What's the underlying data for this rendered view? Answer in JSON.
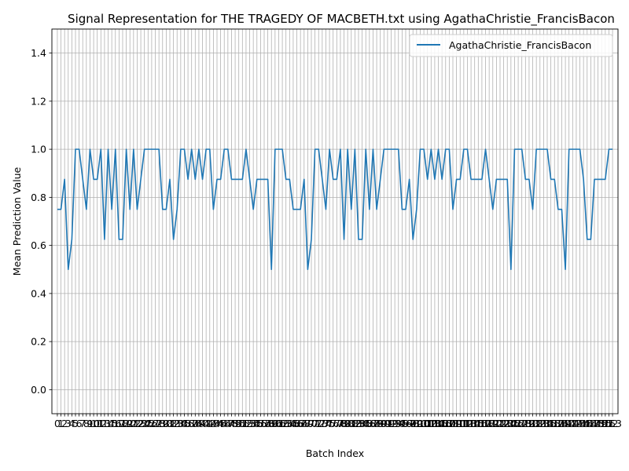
{
  "chart_data": {
    "type": "line",
    "title": "Signal Representation for THE TRAGEDY OF MACBETH.txt using AgathaChristie_FrancisBacon",
    "xlabel": "Batch Index",
    "ylabel": "Mean Prediction Value",
    "xlim": [
      -1.5,
      154.5
    ],
    "ylim": [
      -0.1,
      1.5
    ],
    "yticks": [
      0.0,
      0.2,
      0.4,
      0.6,
      0.8,
      1.0,
      1.2,
      1.4
    ],
    "xticks_count": 154,
    "grid": true,
    "legend_position": "upper right",
    "series": [
      {
        "name": "AgathaChristie_FrancisBacon",
        "color": "#1f77b4",
        "values": [
          0.75,
          0.75,
          0.875,
          0.5,
          0.625,
          1.0,
          1.0,
          0.875,
          0.75,
          1.0,
          0.875,
          0.875,
          1.0,
          0.625,
          1.0,
          0.75,
          1.0,
          0.625,
          0.625,
          1.0,
          0.75,
          1.0,
          0.75,
          0.875,
          1.0,
          1.0,
          1.0,
          1.0,
          1.0,
          0.75,
          0.75,
          0.875,
          0.625,
          0.75,
          1.0,
          1.0,
          0.875,
          1.0,
          0.875,
          1.0,
          0.875,
          1.0,
          1.0,
          0.75,
          0.875,
          0.875,
          1.0,
          1.0,
          0.875,
          0.875,
          0.875,
          0.875,
          1.0,
          0.875,
          0.75,
          0.875,
          0.875,
          0.875,
          0.875,
          0.5,
          1.0,
          1.0,
          1.0,
          0.875,
          0.875,
          0.75,
          0.75,
          0.75,
          0.875,
          0.5,
          0.625,
          1.0,
          1.0,
          0.875,
          0.75,
          1.0,
          0.875,
          0.875,
          1.0,
          0.625,
          1.0,
          0.75,
          1.0,
          0.625,
          0.625,
          1.0,
          0.75,
          1.0,
          0.75,
          0.875,
          1.0,
          1.0,
          1.0,
          1.0,
          1.0,
          0.75,
          0.75,
          0.875,
          0.625,
          0.75,
          1.0,
          1.0,
          0.875,
          1.0,
          0.875,
          1.0,
          0.875,
          1.0,
          1.0,
          0.75,
          0.875,
          0.875,
          1.0,
          1.0,
          0.875,
          0.875,
          0.875,
          0.875,
          1.0,
          0.875,
          0.75,
          0.875,
          0.875,
          0.875,
          0.875,
          0.5,
          1.0,
          1.0,
          1.0,
          0.875,
          0.875,
          0.75,
          1.0,
          1.0,
          1.0,
          1.0,
          0.875,
          0.875,
          0.75,
          0.75,
          0.5,
          1.0,
          1.0,
          1.0,
          1.0,
          0.875,
          0.625,
          0.625,
          0.875,
          0.875,
          0.875,
          0.875,
          1.0,
          1.0
        ]
      }
    ]
  }
}
